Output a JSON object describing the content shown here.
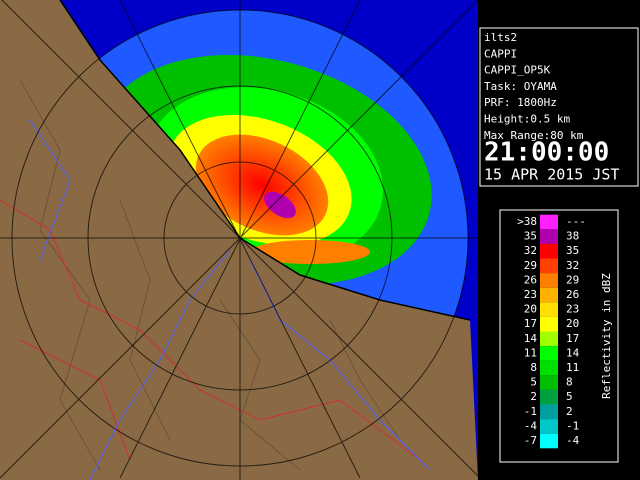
{
  "info": {
    "lines": [
      "ilts2",
      "CAPPI",
      "CAPPI_OP5K",
      "Task: OYAMA",
      "PRF: 1800Hz",
      "Height:0.5 km",
      "Max Range:80 km"
    ],
    "time": "21:00:00",
    "date": "15 APR 2015 JST"
  },
  "legend": {
    "title": "Reflectivity in dBZ",
    "rows": [
      {
        "low": ">38",
        "high": "---",
        "color": "#ff20ff"
      },
      {
        "low": "35",
        "high": "38",
        "color": "#b000b0"
      },
      {
        "low": "32",
        "high": "35",
        "color": "#ff0000"
      },
      {
        "low": "29",
        "high": "32",
        "color": "#ff4000"
      },
      {
        "low": "26",
        "high": "29",
        "color": "#ff8000"
      },
      {
        "low": "23",
        "high": "26",
        "color": "#ffb000"
      },
      {
        "low": "20",
        "high": "23",
        "color": "#ffe000"
      },
      {
        "low": "17",
        "high": "20",
        "color": "#ffff00"
      },
      {
        "low": "14",
        "high": "17",
        "color": "#a0ff00"
      },
      {
        "low": "11",
        "high": "14",
        "color": "#00ff00"
      },
      {
        "low": "8",
        "high": "11",
        "color": "#00e000"
      },
      {
        "low": "5",
        "high": "8",
        "color": "#00c000"
      },
      {
        "low": "2",
        "high": "5",
        "color": "#00a040"
      },
      {
        "low": "-1",
        "high": "2",
        "color": "#00a0a0"
      },
      {
        "low": "-4",
        "high": "-1",
        "color": "#00c8c8"
      },
      {
        "low": "-7",
        "high": "-4",
        "color": "#00ffff"
      }
    ]
  }
}
